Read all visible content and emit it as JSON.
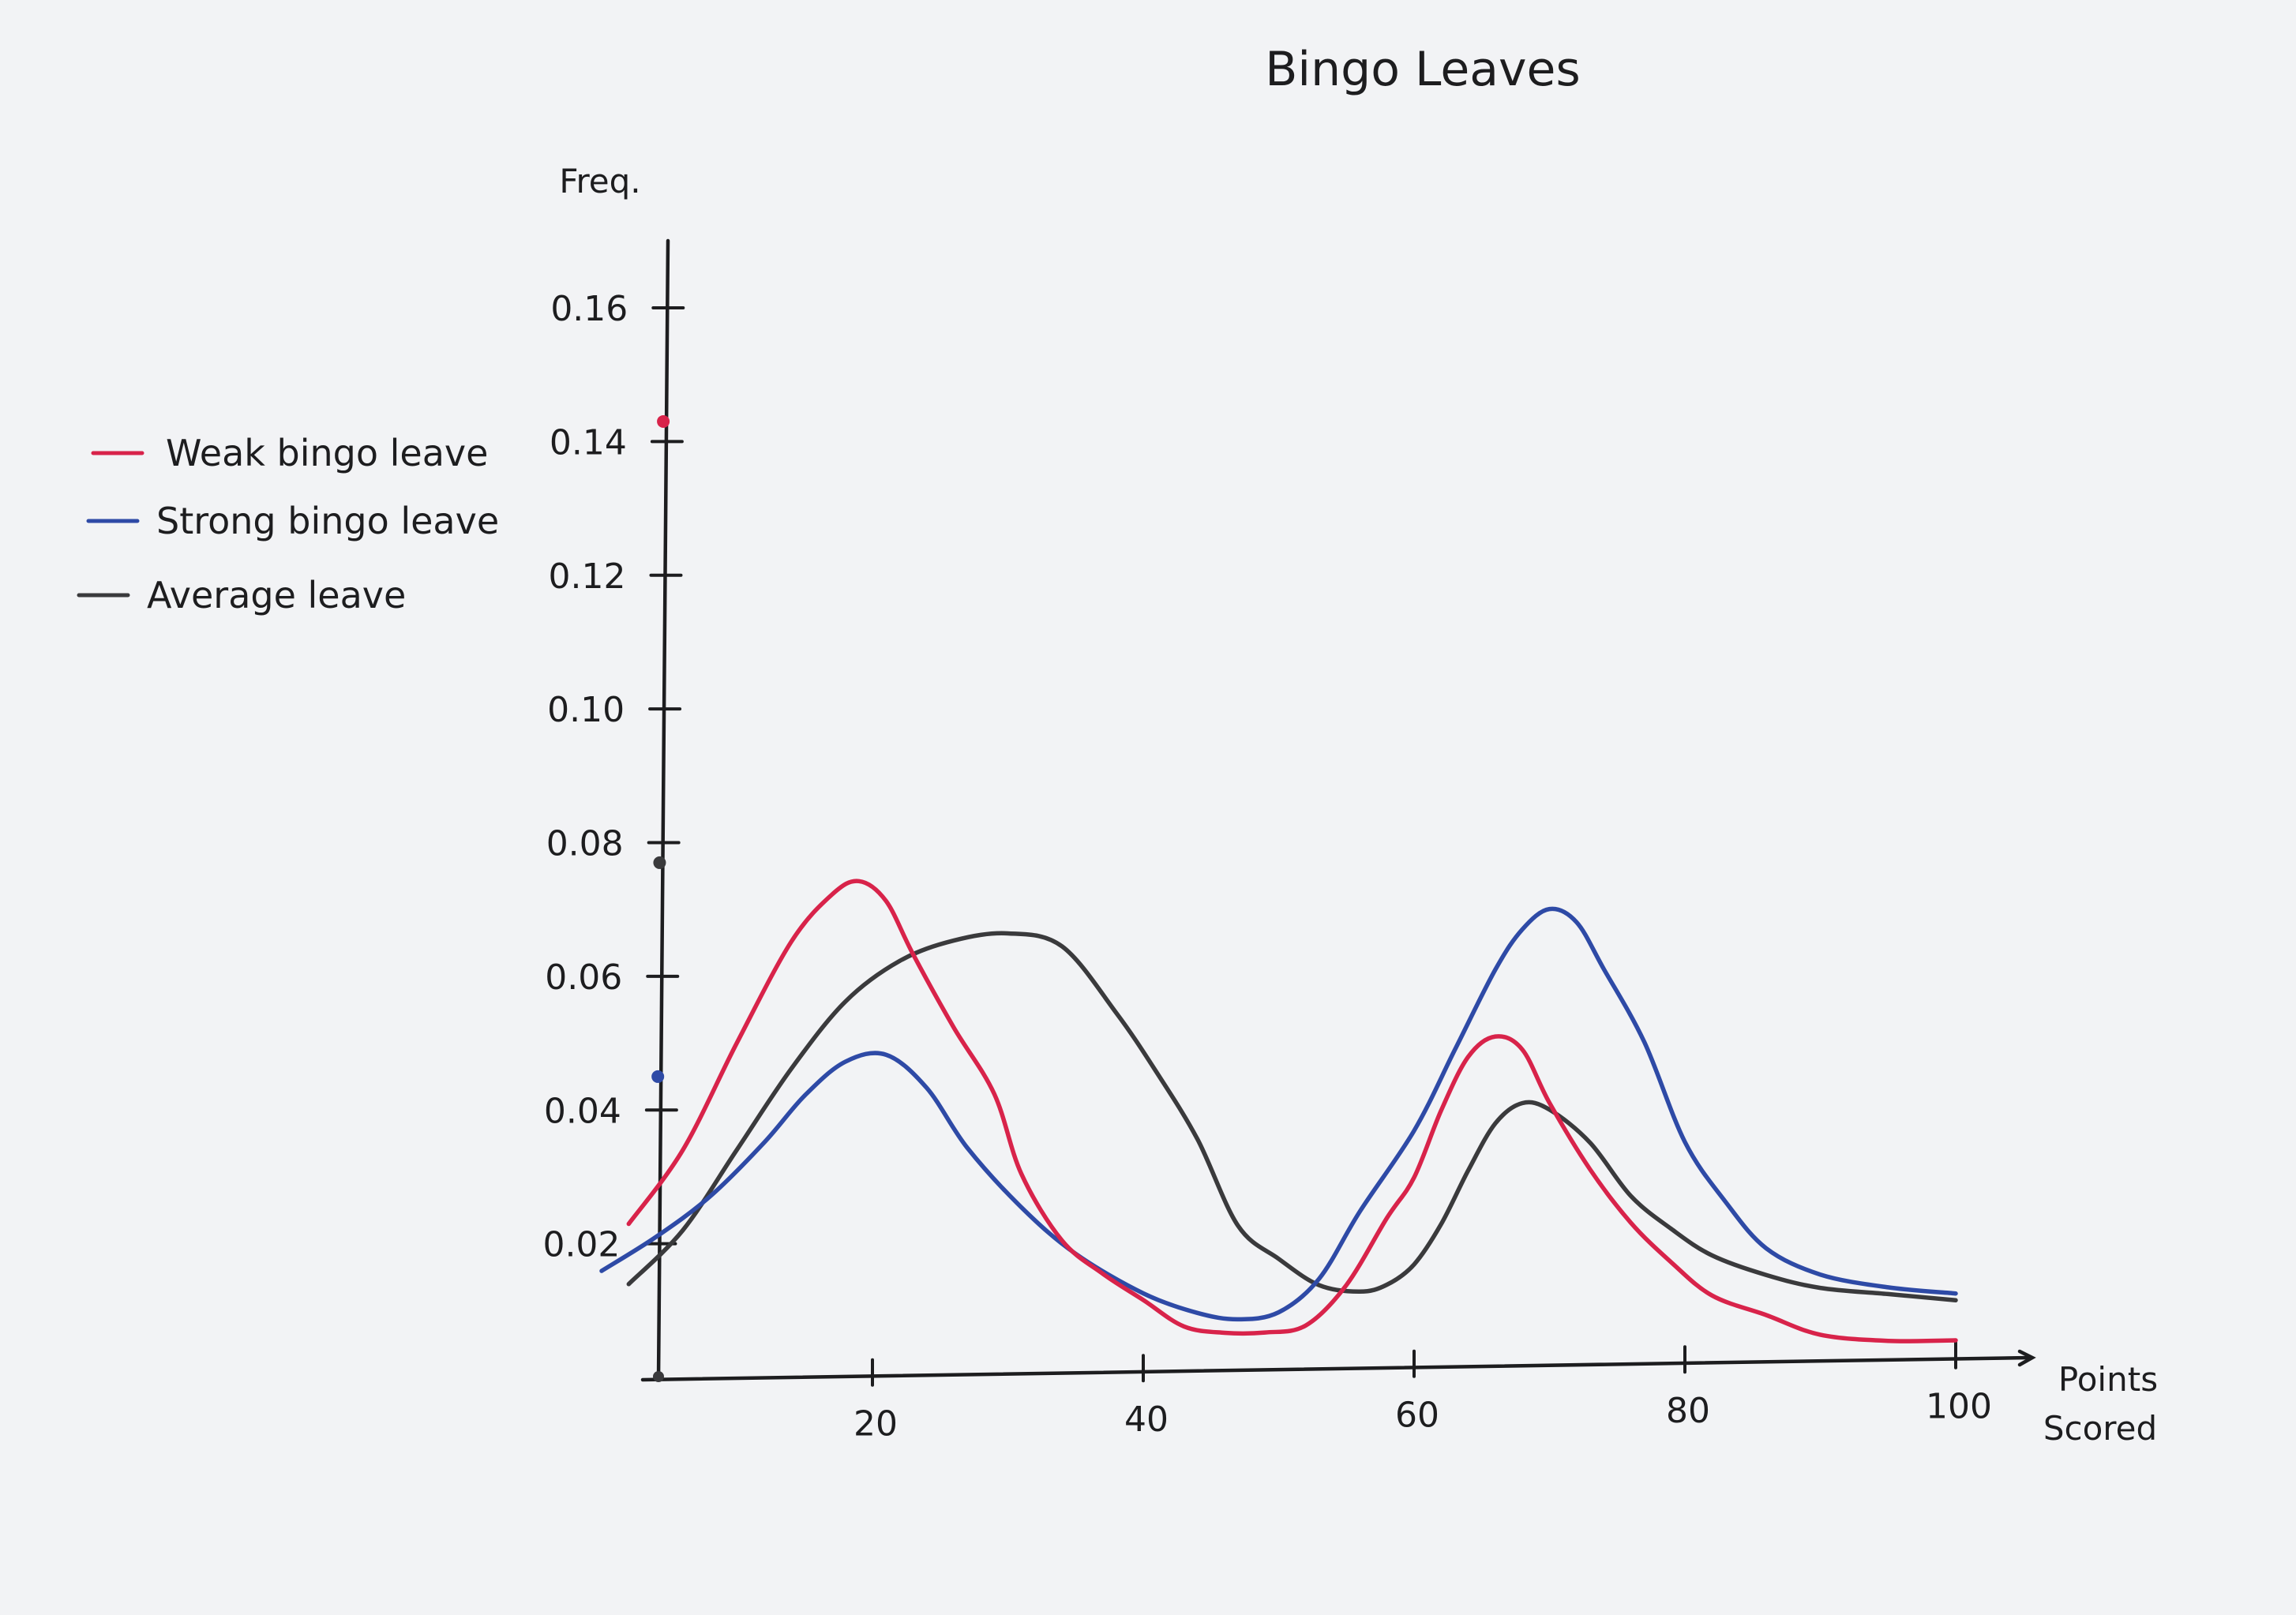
{
  "chart_data": {
    "type": "line",
    "title": "Bingo Leaves",
    "xlabel": "Points Scored",
    "ylabel": "Freq.",
    "xlim": [
      0,
      105
    ],
    "ylim": [
      0,
      0.17
    ],
    "x_ticks": [
      20,
      40,
      60,
      80,
      100
    ],
    "x_tick_labels": [
      "20",
      "40",
      "60",
      "80",
      "100"
    ],
    "y_ticks": [
      0.02,
      0.04,
      0.06,
      0.08,
      0.1,
      0.12,
      0.14,
      0.16
    ],
    "y_tick_labels": [
      "0.02",
      "0.04",
      "0.06",
      "0.08",
      "0.10",
      "0.12",
      "0.14",
      "0.16"
    ],
    "grid": false,
    "legend_position": "left",
    "series": [
      {
        "name": "Weak bingo leave",
        "color": "#d8234a",
        "axis_marker": 0.143,
        "points": [
          [
            2,
            0.023
          ],
          [
            6,
            0.034
          ],
          [
            10,
            0.05
          ],
          [
            14,
            0.065
          ],
          [
            17,
            0.072
          ],
          [
            19,
            0.074
          ],
          [
            21,
            0.071
          ],
          [
            23,
            0.063
          ],
          [
            26,
            0.052
          ],
          [
            29,
            0.042
          ],
          [
            31,
            0.03
          ],
          [
            34,
            0.02
          ],
          [
            37,
            0.015
          ],
          [
            40,
            0.011
          ],
          [
            43,
            0.007
          ],
          [
            46,
            0.006
          ],
          [
            49,
            0.006
          ],
          [
            52,
            0.007
          ],
          [
            55,
            0.013
          ],
          [
            58,
            0.023
          ],
          [
            60,
            0.029
          ],
          [
            62,
            0.039
          ],
          [
            64,
            0.047
          ],
          [
            66,
            0.05
          ],
          [
            68,
            0.048
          ],
          [
            70,
            0.04
          ],
          [
            73,
            0.03
          ],
          [
            76,
            0.022
          ],
          [
            79,
            0.016
          ],
          [
            82,
            0.011
          ],
          [
            86,
            0.008
          ],
          [
            90,
            0.005
          ],
          [
            95,
            0.004
          ],
          [
            100,
            0.004
          ]
        ]
      },
      {
        "name": "Strong bingo leave",
        "color": "#2e4aa6",
        "axis_marker": 0.045,
        "points": [
          [
            0,
            0.016
          ],
          [
            4,
            0.021
          ],
          [
            8,
            0.027
          ],
          [
            12,
            0.035
          ],
          [
            15,
            0.042
          ],
          [
            18,
            0.047
          ],
          [
            21,
            0.048
          ],
          [
            24,
            0.043
          ],
          [
            27,
            0.034
          ],
          [
            31,
            0.025
          ],
          [
            35,
            0.018
          ],
          [
            40,
            0.012
          ],
          [
            44,
            0.009
          ],
          [
            47,
            0.008
          ],
          [
            50,
            0.009
          ],
          [
            53,
            0.014
          ],
          [
            56,
            0.024
          ],
          [
            60,
            0.036
          ],
          [
            63,
            0.048
          ],
          [
            66,
            0.06
          ],
          [
            68,
            0.066
          ],
          [
            70,
            0.069
          ],
          [
            72,
            0.067
          ],
          [
            74,
            0.06
          ],
          [
            77,
            0.049
          ],
          [
            80,
            0.034
          ],
          [
            83,
            0.025
          ],
          [
            86,
            0.018
          ],
          [
            90,
            0.014
          ],
          [
            95,
            0.012
          ],
          [
            100,
            0.011
          ]
        ]
      },
      {
        "name": "Average leave",
        "color": "#3a3a3c",
        "axis_marker": 0.077,
        "points": [
          [
            2,
            0.014
          ],
          [
            6,
            0.022
          ],
          [
            10,
            0.034
          ],
          [
            14,
            0.046
          ],
          [
            18,
            0.056
          ],
          [
            22,
            0.062
          ],
          [
            26,
            0.065
          ],
          [
            30,
            0.066
          ],
          [
            34,
            0.064
          ],
          [
            38,
            0.054
          ],
          [
            41,
            0.045
          ],
          [
            44,
            0.035
          ],
          [
            47,
            0.022
          ],
          [
            50,
            0.017
          ],
          [
            53,
            0.013
          ],
          [
            56,
            0.012
          ],
          [
            58,
            0.013
          ],
          [
            60,
            0.016
          ],
          [
            62,
            0.022
          ],
          [
            64,
            0.03
          ],
          [
            66,
            0.037
          ],
          [
            68,
            0.04
          ],
          [
            70,
            0.039
          ],
          [
            73,
            0.034
          ],
          [
            76,
            0.026
          ],
          [
            79,
            0.021
          ],
          [
            82,
            0.017
          ],
          [
            86,
            0.014
          ],
          [
            90,
            0.012
          ],
          [
            95,
            0.011
          ],
          [
            100,
            0.01
          ]
        ]
      }
    ]
  }
}
